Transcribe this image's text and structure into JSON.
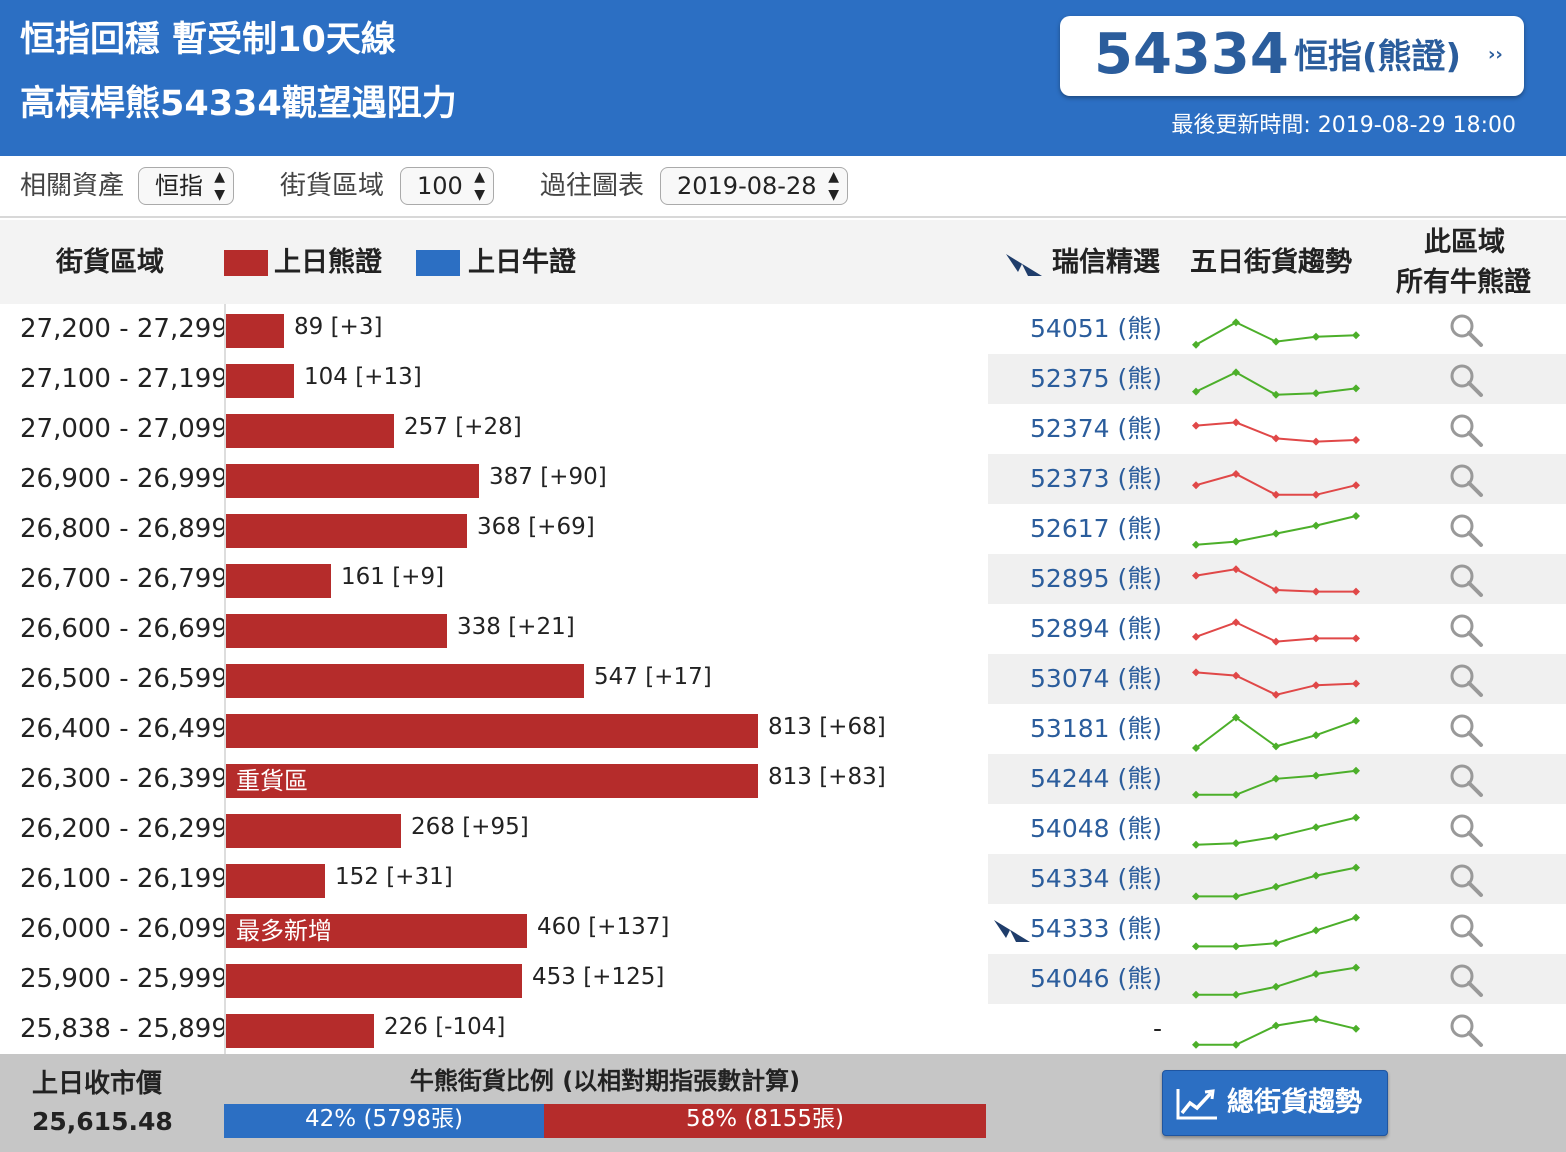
{
  "header": {
    "line1": "恒指回穩 暫受制10天線",
    "line2": "高槓桿熊54334觀望遇阻力",
    "code": "54334",
    "code_type": "恒指(熊證)",
    "arrow": "››",
    "updated": "最後更新時間: 2019-08-29 18:00"
  },
  "toolbar": {
    "asset_label": "相關資產",
    "asset_value": "恒指",
    "zone_label": "街貨區域",
    "zone_value": "100",
    "chart_label": "過往圖表",
    "chart_value": "2019-08-28"
  },
  "columns": {
    "zone": "街貨區域",
    "bear_legend": "上日熊證",
    "bull_legend": "上日牛證",
    "picks": "瑞信精選",
    "trend": "五日街貨趨勢",
    "all_line1": "此區域",
    "all_line2": "所有牛熊證"
  },
  "colors": {
    "header_blue": "#2c6fc3",
    "bear_red": "#b52c2b",
    "bull_blue": "#2c6fc3",
    "link_blue": "#2b5d9c",
    "trend_up": "#4caf2a",
    "trend_down": "#e04848"
  },
  "chart_data": {
    "type": "bar",
    "title": "",
    "xlabel": "",
    "ylabel": "",
    "series": [
      {
        "name": "上日熊證",
        "values": [
          89,
          104,
          257,
          387,
          368,
          161,
          338,
          547,
          813,
          813,
          268,
          152,
          460,
          453,
          226
        ]
      }
    ],
    "categories": [
      "27,200 - 27,299",
      "27,100 - 27,199",
      "27,000 - 27,099",
      "26,900 - 26,999",
      "26,800 - 26,899",
      "26,700 - 26,799",
      "26,600 - 26,699",
      "26,500 - 26,599",
      "26,400 - 26,499",
      "26,300 - 26,399",
      "26,200 - 26,299",
      "26,100 - 26,199",
      "26,000 - 26,099",
      "25,900 - 25,999",
      "25,838 - 25,899"
    ],
    "xlim": [
      0,
      1000
    ]
  },
  "rows": [
    {
      "range": "27,200 - 27,299",
      "value": 89,
      "label": "89 [+3]",
      "tag": "",
      "pick": "54051 (熊)",
      "bird": false,
      "trend": "up",
      "spark": [
        0.1,
        0.8,
        0.2,
        0.35,
        0.4
      ]
    },
    {
      "range": "27,100 - 27,199",
      "value": 104,
      "label": "104 [+13]",
      "tag": "",
      "pick": "52375 (熊)",
      "bird": false,
      "trend": "up",
      "spark": [
        0.2,
        0.8,
        0.1,
        0.15,
        0.3
      ]
    },
    {
      "range": "27,000 - 27,099",
      "value": 257,
      "label": "257 [+28]",
      "tag": "",
      "pick": "52374 (熊)",
      "bird": false,
      "trend": "down",
      "spark": [
        0.7,
        0.8,
        0.3,
        0.2,
        0.25
      ]
    },
    {
      "range": "26,900 - 26,999",
      "value": 387,
      "label": "387 [+90]",
      "tag": "",
      "pick": "52373 (熊)",
      "bird": false,
      "trend": "down",
      "spark": [
        0.4,
        0.75,
        0.1,
        0.1,
        0.4
      ]
    },
    {
      "range": "26,800 - 26,899",
      "value": 368,
      "label": "368 [+69]",
      "tag": "",
      "pick": "52617 (熊)",
      "bird": false,
      "trend": "up",
      "spark": [
        0.1,
        0.2,
        0.45,
        0.7,
        1.0
      ]
    },
    {
      "range": "26,700 - 26,799",
      "value": 161,
      "label": "161 [+9]",
      "tag": "",
      "pick": "52895 (熊)",
      "bird": false,
      "trend": "down",
      "spark": [
        0.7,
        0.9,
        0.25,
        0.2,
        0.2
      ]
    },
    {
      "range": "26,600 - 26,699",
      "value": 338,
      "label": "338 [+21]",
      "tag": "",
      "pick": "52894 (熊)",
      "bird": false,
      "trend": "down",
      "spark": [
        0.35,
        0.8,
        0.2,
        0.3,
        0.3
      ]
    },
    {
      "range": "26,500 - 26,599",
      "value": 547,
      "label": "547 [+17]",
      "tag": "",
      "pick": "53074 (熊)",
      "bird": false,
      "trend": "down",
      "spark": [
        0.8,
        0.7,
        0.1,
        0.4,
        0.45
      ]
    },
    {
      "range": "26,400 - 26,499",
      "value": 813,
      "label": "813 [+68]",
      "tag": "",
      "pick": "53181 (熊)",
      "bird": false,
      "trend": "up",
      "spark": [
        0.0,
        0.95,
        0.05,
        0.4,
        0.85
      ]
    },
    {
      "range": "26,300 - 26,399",
      "value": 813,
      "label": "813 [+83]",
      "tag": "重貨區",
      "pick": "54244 (熊)",
      "bird": false,
      "trend": "up",
      "spark": [
        0.1,
        0.1,
        0.6,
        0.7,
        0.85
      ]
    },
    {
      "range": "26,200 - 26,299",
      "value": 268,
      "label": "268 [+95]",
      "tag": "",
      "pick": "54048 (熊)",
      "bird": false,
      "trend": "up",
      "spark": [
        0.1,
        0.15,
        0.35,
        0.65,
        0.95
      ]
    },
    {
      "range": "26,100 - 26,199",
      "value": 152,
      "label": "152 [+31]",
      "tag": "",
      "pick": "54334 (熊)",
      "bird": false,
      "trend": "up",
      "spark": [
        0.05,
        0.05,
        0.35,
        0.7,
        0.95
      ]
    },
    {
      "range": "26,000 - 26,099",
      "value": 460,
      "label": "460 [+137]",
      "tag": "最多新增",
      "pick": "54333 (熊)",
      "bird": true,
      "trend": "up",
      "spark": [
        0.05,
        0.05,
        0.15,
        0.55,
        0.95
      ]
    },
    {
      "range": "25,900 - 25,999",
      "value": 453,
      "label": "453 [+125]",
      "tag": "",
      "pick": "54046 (熊)",
      "bird": false,
      "trend": "up",
      "spark": [
        0.1,
        0.1,
        0.35,
        0.75,
        0.95
      ]
    },
    {
      "range": "25,838 - 25,899",
      "value": 226,
      "label": "226 [-104]",
      "tag": "",
      "pick": "-",
      "bird": false,
      "trend": "up",
      "spark": [
        0.1,
        0.1,
        0.7,
        0.9,
        0.6
      ]
    }
  ],
  "footer": {
    "prev_label": "上日收市價",
    "prev_value": "25,615.48",
    "ratio_title": "牛熊街貨比例 (以相對期指張數計算)",
    "bull_pct": 42,
    "bull_text": "42% (5798張)",
    "bear_pct": 58,
    "bear_text": "58% (8155張)",
    "trend_button": "總街貨趨勢"
  }
}
